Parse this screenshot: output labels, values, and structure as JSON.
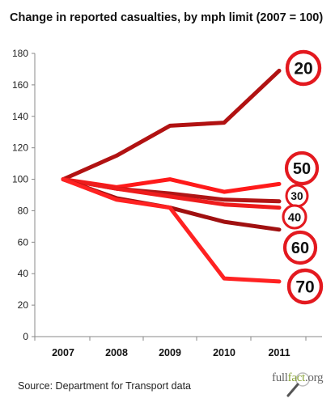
{
  "chart_data": {
    "type": "line",
    "title": "Change in reported casualties, by mph limit (2007 = 100)",
    "categories": [
      "2007",
      "2008",
      "2009",
      "2010",
      "2011"
    ],
    "ylim": [
      0,
      180
    ],
    "yticks": [
      0,
      20,
      40,
      60,
      80,
      100,
      120,
      140,
      160,
      180
    ],
    "grid": false,
    "legend": "speed-limit signs at line ends",
    "series": [
      {
        "name": "20",
        "color": "#b11212",
        "values": [
          100,
          115,
          134,
          136,
          169
        ]
      },
      {
        "name": "50",
        "color": "#ff1a1a",
        "values": [
          100,
          95,
          100,
          92,
          97
        ]
      },
      {
        "name": "30",
        "color": "#b01515",
        "values": [
          100,
          94,
          91,
          87,
          86
        ]
      },
      {
        "name": "40",
        "color": "#ee1c1c",
        "values": [
          100,
          94,
          89,
          84,
          82
        ]
      },
      {
        "name": "60",
        "color": "#a01010",
        "values": [
          100,
          88,
          82,
          73,
          68
        ]
      },
      {
        "name": "70",
        "color": "#ff2222",
        "values": [
          100,
          87,
          82,
          37,
          35
        ]
      }
    ]
  },
  "source": "Source: Department for Transport data",
  "logo": {
    "part1": "full",
    "part2": "fact",
    "part3": ".org"
  },
  "colors": {
    "sign_ring": "#e3191f",
    "axis": "#888888"
  }
}
